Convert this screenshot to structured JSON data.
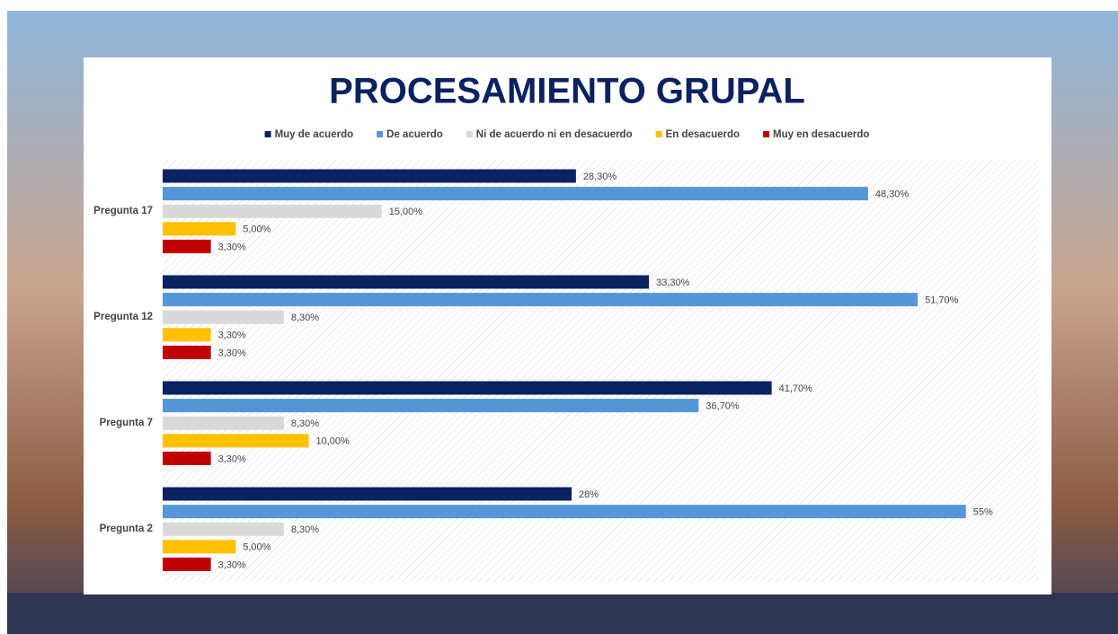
{
  "chart_data": {
    "type": "bar",
    "orientation": "horizontal",
    "title": "PROCESAMIENTO GRUPAL",
    "categories": [
      "Pregunta 17",
      "Pregunta 12",
      "Pregunta 7",
      "Pregunta 2"
    ],
    "series": [
      {
        "name": "Muy de acuerdo",
        "color": "#0b2260",
        "values": [
          28.3,
          33.3,
          41.7,
          28
        ],
        "value_labels": [
          "28,30%",
          "33,30%",
          "41,70%",
          "28%"
        ]
      },
      {
        "name": "De acuerdo",
        "color": "#5596d8",
        "values": [
          48.3,
          51.7,
          36.7,
          55
        ],
        "value_labels": [
          "48,30%",
          "51,70%",
          "36,70%",
          "55%"
        ]
      },
      {
        "name": "Ni de acuerdo ni en desacuerdo",
        "color": "#d9d9d9",
        "values": [
          15,
          8.3,
          8.3,
          8.3
        ],
        "value_labels": [
          "15,00%",
          "8,30%",
          "8,30%",
          "8,30%"
        ]
      },
      {
        "name": "En desacuerdo",
        "color": "#ffc000",
        "values": [
          5,
          3.3,
          10,
          5
        ],
        "value_labels": [
          "5,00%",
          "3,30%",
          "10,00%",
          "5,00%"
        ]
      },
      {
        "name": "Muy en desacuerdo",
        "color": "#c00000",
        "values": [
          3.3,
          3.3,
          3.3,
          3.3
        ],
        "value_labels": [
          "3,30%",
          "3,30%",
          "3,30%",
          "3,30%"
        ]
      }
    ],
    "xlim": [
      0,
      60
    ],
    "legend": "top"
  }
}
